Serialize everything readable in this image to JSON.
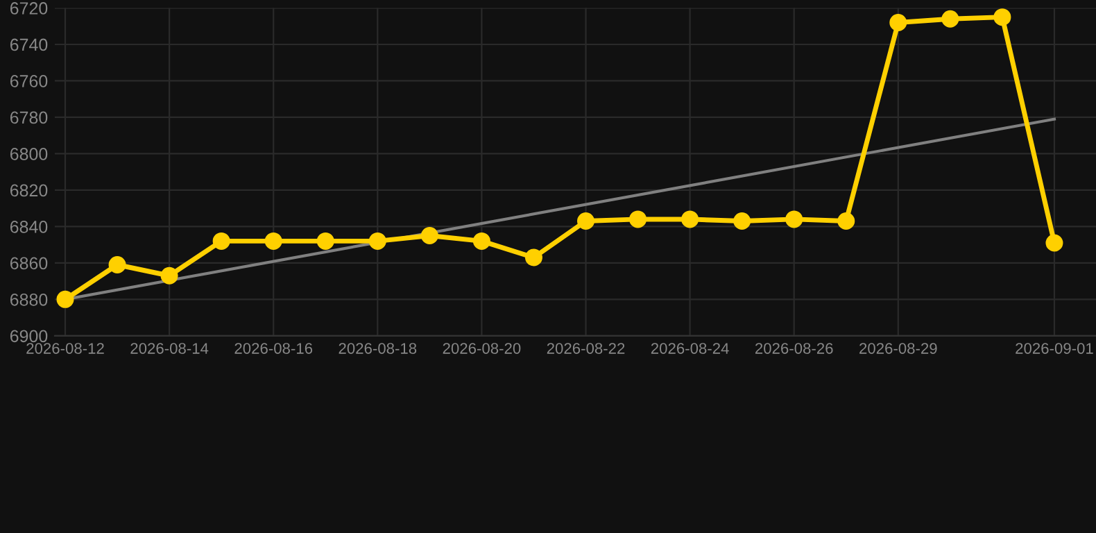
{
  "chart_data": {
    "type": "line",
    "categories": [
      "2026-08-12",
      null,
      "2026-08-14",
      null,
      "2026-08-16",
      null,
      "2026-08-18",
      null,
      "2026-08-20",
      null,
      "2026-08-22",
      null,
      "2026-08-24",
      null,
      "2026-08-26",
      null,
      "2026-08-29",
      null,
      null,
      "2026-09-01"
    ],
    "series": [
      {
        "color": "#ffd000",
        "marker": "circle",
        "values": [
          6880,
          6861,
          6867,
          6848,
          6848,
          6848,
          6848,
          6845,
          6848,
          6857,
          6837,
          6836,
          6836,
          6837,
          6836,
          6837,
          6728,
          6726,
          6725,
          6849
        ]
      },
      {
        "type": "line",
        "color": "#808080",
        "marker": "none",
        "values": [
          6880,
          null,
          null,
          null,
          null,
          null,
          null,
          null,
          null,
          null,
          null,
          null,
          null,
          null,
          null,
          null,
          null,
          null,
          null,
          6781
        ]
      }
    ],
    "ylim": [
      6900,
      6720
    ],
    "yticks": [
      6720,
      6740,
      6760,
      6780,
      6800,
      6820,
      6840,
      6860,
      6880,
      6900
    ],
    "grid": true,
    "line_style": "solid"
  }
}
